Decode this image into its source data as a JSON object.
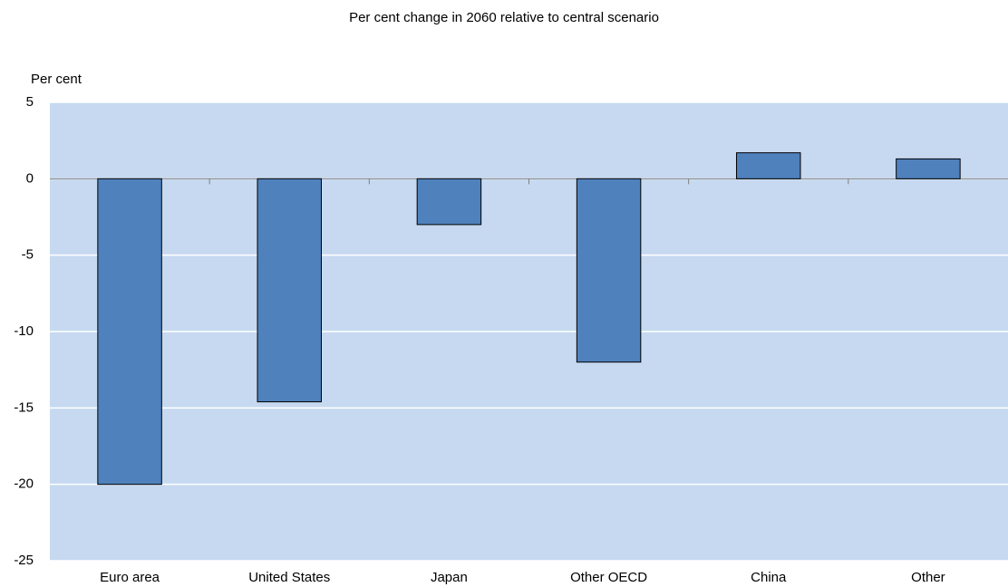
{
  "chart_data": {
    "type": "bar",
    "title": "Per cent change in 2060 relative to central scenario",
    "y_label": "Per cent",
    "categories": [
      "Euro area",
      "United States",
      "Japan",
      "Other OECD",
      "China",
      "Other"
    ],
    "values": [
      -20,
      -14.6,
      -3,
      -12,
      1.7,
      1.3
    ],
    "color": "#4f81bd",
    "ylim": [
      -25,
      5
    ],
    "yticks": [
      -25,
      -20,
      -15,
      -10,
      -5,
      0,
      5
    ],
    "grid": true
  }
}
